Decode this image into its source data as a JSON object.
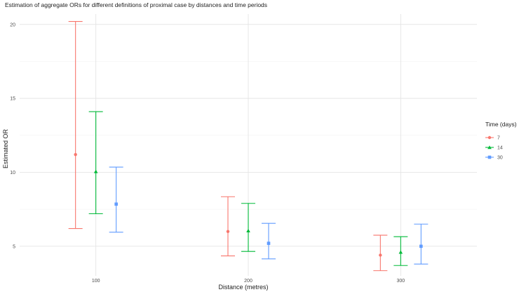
{
  "chart_data": {
    "type": "errorbar",
    "title": "Estimation of aggregate ORs for different definitions of proximal case by distances and time periods",
    "xlabel": "Distance (metres)",
    "ylabel": "Estimated OR",
    "categories": [
      "100",
      "200",
      "300"
    ],
    "y_ticks": [
      "5",
      "10",
      "15",
      "20"
    ],
    "ylim": [
      3.0,
      20.7
    ],
    "grid": true,
    "legend": {
      "title": "Time (days)",
      "position": "right"
    },
    "series": [
      {
        "name": "7",
        "color": "#F8766D",
        "marker": "circle",
        "values": [
          11.2,
          6.0,
          4.4
        ],
        "lower": [
          6.2,
          4.35,
          3.35
        ],
        "upper": [
          20.2,
          8.35,
          5.75
        ]
      },
      {
        "name": "14",
        "color": "#00BA38",
        "marker": "triangle",
        "values": [
          10.05,
          6.05,
          4.6
        ],
        "lower": [
          7.2,
          4.65,
          3.7
        ],
        "upper": [
          14.1,
          7.9,
          5.65
        ]
      },
      {
        "name": "30",
        "color": "#619CFF",
        "marker": "square",
        "values": [
          7.85,
          5.2,
          5.0
        ],
        "lower": [
          5.95,
          4.15,
          3.8
        ],
        "upper": [
          10.35,
          6.55,
          6.5
        ]
      }
    ]
  }
}
